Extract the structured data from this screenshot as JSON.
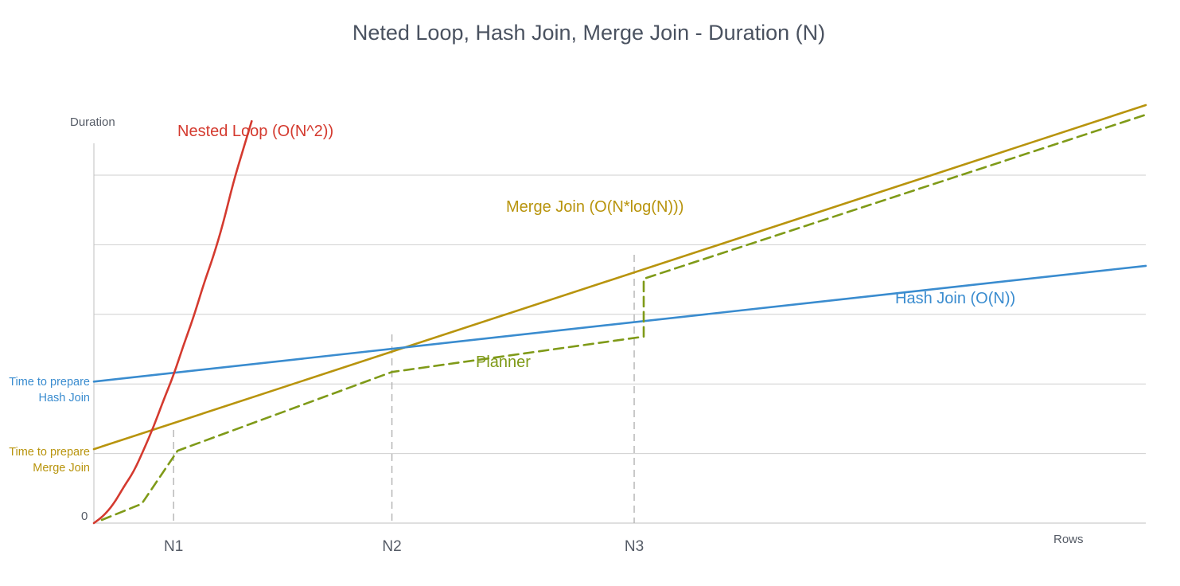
{
  "chart_data": {
    "type": "line",
    "title": "Neted Loop, Hash Join, Merge Join - Duration (N)",
    "ylabel": "Duration",
    "xlabel": "Rows",
    "y_zero_label": "0",
    "x_ticks": [
      "N1",
      "N2",
      "N3"
    ],
    "grid": true,
    "y_annotations": [
      {
        "lines": [
          "Time to prepare",
          "Hash Join"
        ],
        "color": "#3a8ccf"
      },
      {
        "lines": [
          "Time to prepare",
          "Merge Join"
        ],
        "color": "#b8940d"
      }
    ],
    "series": [
      {
        "name": "Nested Loop (O(N^2))",
        "color": "#d43a2f",
        "style": "solid",
        "points": [
          [
            0,
            0
          ],
          [
            0.12,
            0.22
          ],
          [
            0.25,
            0.6
          ],
          [
            0.38,
            1.15
          ],
          [
            0.5,
            1.6
          ],
          [
            0.62,
            2.25
          ],
          [
            0.75,
            3.0
          ],
          [
            0.87,
            3.8
          ],
          [
            1.0,
            4.6
          ],
          [
            1.12,
            5.5
          ],
          [
            1.25,
            6.4
          ],
          [
            1.38,
            7.45
          ],
          [
            1.5,
            8.3
          ],
          [
            1.62,
            9.3
          ],
          [
            1.75,
            10.6
          ],
          [
            1.87,
            11.6
          ],
          [
            1.98,
            12.5
          ]
        ]
      },
      {
        "name": "Merge Join (O(N*log(N)))",
        "color": "#b8940d",
        "style": "solid",
        "points": [
          [
            0,
            2.3
          ],
          [
            13.2,
            13.0
          ]
        ]
      },
      {
        "name": "Hash Join (O(N))",
        "color": "#3a8ccf",
        "style": "solid",
        "points": [
          [
            0,
            4.4
          ],
          [
            13.2,
            8.0
          ]
        ]
      },
      {
        "name": "Planner",
        "color": "#7f9a18",
        "style": "dashed",
        "points": [
          [
            0.1,
            0.1
          ],
          [
            0.6,
            0.6
          ],
          [
            1.05,
            2.25
          ],
          [
            3.74,
            4.7
          ],
          [
            6.9,
            5.8
          ],
          [
            6.9,
            7.6
          ],
          [
            13.2,
            12.7
          ]
        ]
      }
    ],
    "markers": [
      {
        "x": 1.0,
        "label": "N1"
      },
      {
        "x": 3.74,
        "label": "N2"
      },
      {
        "x": 6.78,
        "label": "N3"
      }
    ],
    "xlim": [
      0,
      13.2
    ],
    "ylim": [
      0,
      13.0
    ],
    "gridlines_y": [
      1,
      2,
      3,
      4,
      5
    ]
  }
}
